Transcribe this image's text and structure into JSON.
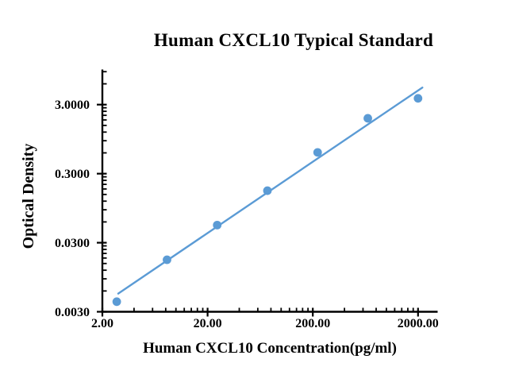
{
  "page": {
    "background": "#ffffff"
  },
  "chart_data": {
    "type": "scatter",
    "title": "Human CXCL10 Typical Standard",
    "xlabel": "Human CXCL10 Concentration(pg/ml)",
    "ylabel": "Optical Density",
    "x_scale": "log",
    "y_scale": "log",
    "xlim": [
      2,
      3000
    ],
    "ylim": [
      0.003,
      10
    ],
    "grid": false,
    "legend": "none",
    "axis_color": "#000000",
    "accent_color": "#5B9BD5",
    "x_ticks": [
      {
        "v": 2,
        "label": "2.00"
      },
      {
        "v": 20,
        "label": "20.00"
      },
      {
        "v": 200,
        "label": "200.00"
      },
      {
        "v": 2000,
        "label": "2000.00"
      }
    ],
    "y_ticks": [
      {
        "v": 0.003,
        "label": "0.0030"
      },
      {
        "v": 0.03,
        "label": "0.0300"
      },
      {
        "v": 0.3,
        "label": "0.3000"
      },
      {
        "v": 3,
        "label": "3.0000"
      }
    ],
    "series": [
      {
        "name": "standard-points",
        "type": "scatter",
        "marker": "circle",
        "color": "#5B9BD5",
        "points": [
          {
            "conc": 2.74,
            "od": 0.0042
          },
          {
            "conc": 8.23,
            "od": 0.017
          },
          {
            "conc": 24.69,
            "od": 0.054
          },
          {
            "conc": 74.07,
            "od": 0.17
          },
          {
            "conc": 222.22,
            "od": 0.61
          },
          {
            "conc": 666.67,
            "od": 1.9
          },
          {
            "conc": 2000,
            "od": 3.7
          }
        ]
      },
      {
        "name": "trend-line",
        "type": "line",
        "color": "#5B9BD5",
        "points": [
          {
            "conc": 2.83,
            "od": 0.0055
          },
          {
            "conc": 2200,
            "od": 5.3
          }
        ]
      }
    ]
  }
}
